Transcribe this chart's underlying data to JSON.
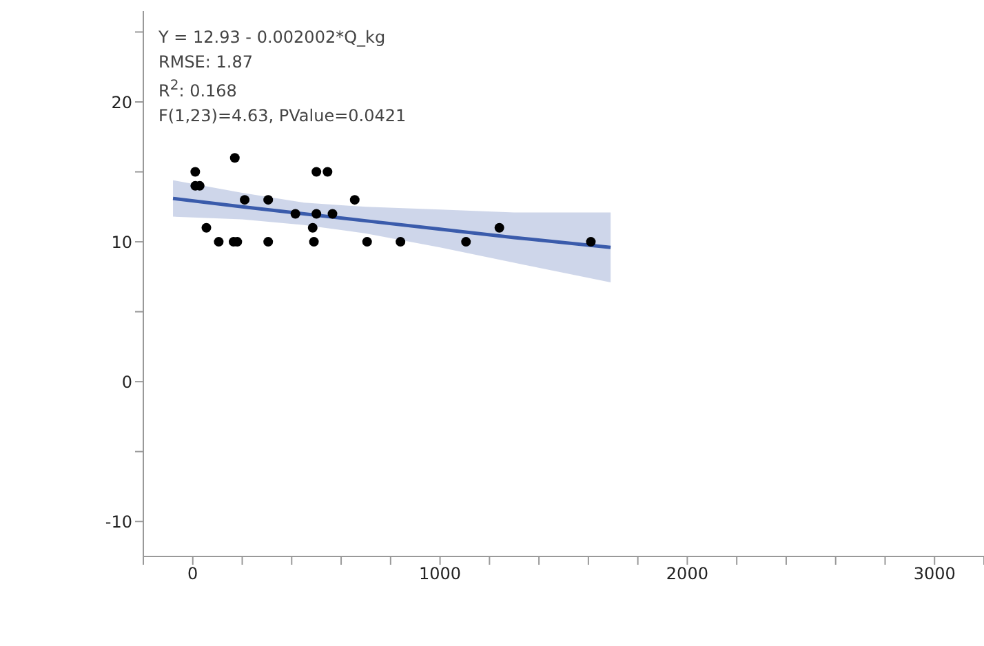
{
  "chart_data": {
    "type": "scatter",
    "annotations": [
      "Y = 12.93 - 0.002002*Q_kg",
      "RMSE: 1.87",
      "R$^{2}$: 0.168",
      "F(1,23)=4.63, PValue=0.0421"
    ],
    "xlim": [
      -200,
      3200
    ],
    "xticks": [
      {
        "value": -200,
        "label": null
      },
      0,
      {
        "value": 200,
        "label": null
      },
      {
        "value": 400,
        "label": null
      },
      {
        "value": 600,
        "label": null
      },
      {
        "value": 800,
        "label": null
      },
      1000,
      {
        "value": 1200,
        "label": null
      },
      {
        "value": 1400,
        "label": null
      },
      {
        "value": 1600,
        "label": null
      },
      {
        "value": 1800,
        "label": null
      },
      2000,
      {
        "value": 2200,
        "label": null
      },
      {
        "value": 2400,
        "label": null
      },
      {
        "value": 2600,
        "label": null
      },
      {
        "value": 2800,
        "label": null
      },
      3000,
      {
        "value": 3200,
        "label": null
      }
    ],
    "ylim": [
      -12.5,
      26.5
    ],
    "yticks": [
      -10,
      {
        "value": -5,
        "label": null
      },
      0,
      {
        "value": 5,
        "label": null
      },
      10,
      {
        "value": 15,
        "label": null
      },
      20,
      {
        "value": 25,
        "label": null
      }
    ],
    "series": [
      {
        "marker": "circle",
        "color": "#000000",
        "x": [
          10,
          10,
          28,
          170,
          210,
          305,
          55,
          105,
          165,
          180,
          305,
          415,
          500,
          545,
          500,
          565,
          485,
          490,
          655,
          705,
          840,
          1105,
          1240,
          1610
        ],
        "values": [
          15,
          14,
          14,
          16,
          13,
          13,
          11,
          10,
          10,
          10,
          10,
          12,
          15,
          15,
          12,
          12,
          11,
          10,
          13,
          10,
          10,
          10,
          11,
          10
        ]
      },
      {
        "type": "line",
        "marker": "none",
        "color": "#3a5bab",
        "x": [
          -80,
          200,
          450,
          700,
          1000,
          1300,
          1690
        ],
        "values": [
          13.1,
          12.5,
          12.0,
          11.5,
          10.9,
          10.3,
          9.6
        ],
        "lower": [
          11.8,
          11.6,
          11.2,
          10.6,
          9.6,
          8.5,
          7.1
        ],
        "upper": [
          14.4,
          13.5,
          12.8,
          12.5,
          12.3,
          12.1,
          12.1
        ]
      }
    ]
  }
}
